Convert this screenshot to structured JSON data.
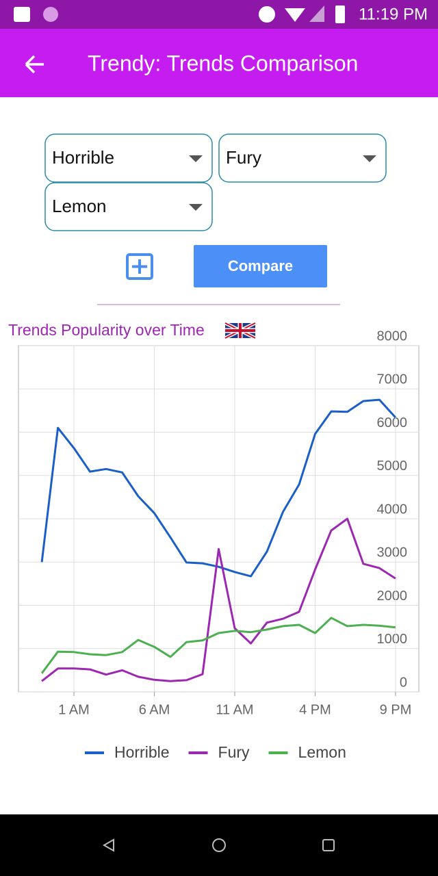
{
  "status_bar": {
    "time": "11:19 PM"
  },
  "app_bar": {
    "title": "Trendy: Trends Comparison"
  },
  "selectors": [
    "Horrible",
    "Fury",
    "Lemon"
  ],
  "compare_button": "Compare",
  "chart_data": {
    "type": "line",
    "title": "Trends Popularity over Time",
    "x": [
      -1,
      0,
      1,
      2,
      3,
      4,
      5,
      6,
      7,
      8,
      9,
      10,
      11,
      12,
      13,
      14,
      15,
      16,
      17,
      18,
      19,
      20,
      21
    ],
    "xlim": [
      -2.45,
      22.45
    ],
    "xticks": [
      {
        "value": 1,
        "label": "1 AM"
      },
      {
        "value": 6,
        "label": "6 AM"
      },
      {
        "value": 11,
        "label": "11 AM"
      },
      {
        "value": 16,
        "label": "4 PM"
      },
      {
        "value": 21,
        "label": "9 PM"
      }
    ],
    "ylim": [
      0,
      8000
    ],
    "yticks": [
      0,
      1000,
      2000,
      3000,
      4000,
      5000,
      6000,
      7000,
      8000
    ],
    "grid": true,
    "legend": "bottom",
    "series": [
      {
        "name": "Horrible",
        "color": "#1a5fc8",
        "values": [
          3000,
          6100,
          5630,
          5090,
          5150,
          5070,
          4520,
          4130,
          3570,
          2990,
          2970,
          2890,
          2770,
          2670,
          3240,
          4160,
          4790,
          5960,
          6480,
          6470,
          6720,
          6750,
          6340
        ]
      },
      {
        "name": "Fury",
        "color": "#9c27b0",
        "values": [
          250,
          540,
          540,
          520,
          400,
          500,
          350,
          280,
          250,
          270,
          410,
          3300,
          1470,
          1120,
          1600,
          1690,
          1850,
          2830,
          3730,
          4000,
          2960,
          2860,
          2620
        ]
      },
      {
        "name": "Lemon",
        "color": "#4caf50",
        "values": [
          430,
          930,
          920,
          870,
          850,
          920,
          1200,
          1040,
          810,
          1150,
          1190,
          1360,
          1410,
          1380,
          1440,
          1520,
          1550,
          1360,
          1710,
          1520,
          1550,
          1530,
          1490
        ]
      }
    ]
  }
}
